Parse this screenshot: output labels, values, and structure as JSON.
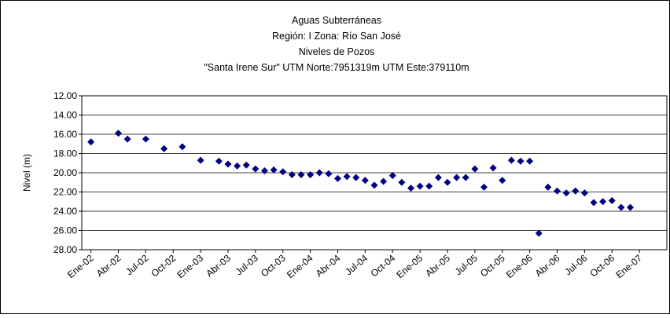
{
  "chart_data": {
    "type": "scatter",
    "title": [
      "Aguas Subterráneas",
      "Región: I  Zona: Río San José",
      "Niveles de Pozos",
      "\"Santa Irene Sur\"  UTM Norte:7951319m    UTM Este:379110m"
    ],
    "y_label": "Nivel (m)",
    "color": "#000080",
    "y_reversed": true,
    "grid": true,
    "ylim": [
      12,
      28
    ],
    "yticks": [
      {
        "value": 12,
        "label": "12.00"
      },
      {
        "value": 14,
        "label": "14.00"
      },
      {
        "value": 16,
        "label": "16.00"
      },
      {
        "value": 18,
        "label": "18.00"
      },
      {
        "value": 20,
        "label": "20.00"
      },
      {
        "value": 22,
        "label": "22.00"
      },
      {
        "value": 24,
        "label": "24.00"
      },
      {
        "value": 26,
        "label": "26.00"
      },
      {
        "value": 28,
        "label": "28.00"
      }
    ],
    "xlim": [
      "2001-12",
      "2007-04"
    ],
    "xticks": [
      {
        "value": "2002-01",
        "label": "Ene-02"
      },
      {
        "value": "2002-04",
        "label": "Abr-02"
      },
      {
        "value": "2002-07",
        "label": "Jul-02"
      },
      {
        "value": "2002-10",
        "label": "Oct-02"
      },
      {
        "value": "2003-01",
        "label": "Ene-03"
      },
      {
        "value": "2003-04",
        "label": "Abr-03"
      },
      {
        "value": "2003-07",
        "label": "Jul-03"
      },
      {
        "value": "2003-10",
        "label": "Oct-03"
      },
      {
        "value": "2004-01",
        "label": "Ene-04"
      },
      {
        "value": "2004-04",
        "label": "Abr-04"
      },
      {
        "value": "2004-07",
        "label": "Jul-04"
      },
      {
        "value": "2004-10",
        "label": "Oct-04"
      },
      {
        "value": "2005-01",
        "label": "Ene-05"
      },
      {
        "value": "2005-04",
        "label": "Abr-05"
      },
      {
        "value": "2005-07",
        "label": "Jul-05"
      },
      {
        "value": "2005-10",
        "label": "Oct-05"
      },
      {
        "value": "2006-01",
        "label": "Ene-06"
      },
      {
        "value": "2006-04",
        "label": "Abr-06"
      },
      {
        "value": "2006-07",
        "label": "Jul-06"
      },
      {
        "value": "2006-10",
        "label": "Oct-06"
      },
      {
        "value": "2007-01",
        "label": "Ene-07"
      }
    ],
    "x": [
      "2002-01",
      "2002-04",
      "2002-05",
      "2002-07",
      "2002-09",
      "2002-11",
      "2003-01",
      "2003-03",
      "2003-04",
      "2003-05",
      "2003-06",
      "2003-07",
      "2003-08",
      "2003-09",
      "2003-10",
      "2003-11",
      "2003-12",
      "2004-01",
      "2004-02",
      "2004-03",
      "2004-04",
      "2004-05",
      "2004-06",
      "2004-07",
      "2004-08",
      "2004-09",
      "2004-10",
      "2004-11",
      "2004-12",
      "2005-01",
      "2005-02",
      "2005-03",
      "2005-04",
      "2005-05",
      "2005-06",
      "2005-07",
      "2005-08",
      "2005-09",
      "2005-10",
      "2005-11",
      "2005-12",
      "2006-01",
      "2006-02",
      "2006-03",
      "2006-04",
      "2006-05",
      "2006-06",
      "2006-07",
      "2006-08",
      "2006-09",
      "2006-10",
      "2006-11",
      "2006-12"
    ],
    "values": [
      16.8,
      15.9,
      16.5,
      16.5,
      17.5,
      17.3,
      18.7,
      18.8,
      19.1,
      19.3,
      19.2,
      19.6,
      19.8,
      19.7,
      19.9,
      20.2,
      20.2,
      20.2,
      20.0,
      20.1,
      20.6,
      20.4,
      20.5,
      20.8,
      21.3,
      20.9,
      20.3,
      21.0,
      21.6,
      21.4,
      21.4,
      20.5,
      21.0,
      20.5,
      20.5,
      19.6,
      21.5,
      19.5,
      20.8,
      18.7,
      18.8,
      18.8,
      26.3,
      21.5,
      21.9,
      22.1,
      21.9,
      22.1,
      23.1,
      23.0,
      22.9,
      23.6,
      23.6
    ]
  }
}
